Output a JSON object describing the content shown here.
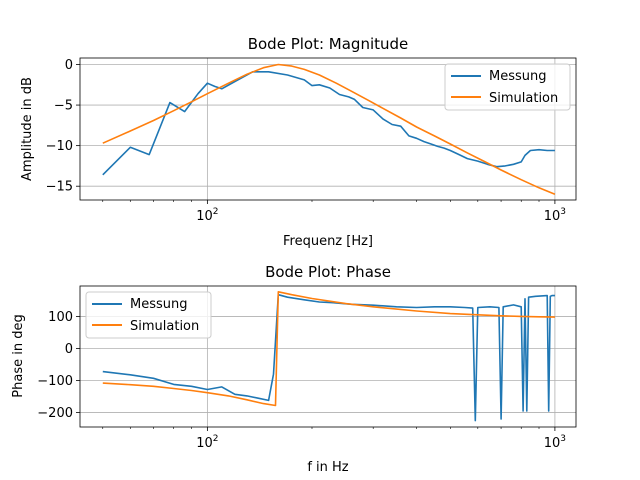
{
  "chart_data": [
    {
      "type": "line",
      "title": "Bode Plot: Magnitude",
      "xlabel": "Frequenz [Hz]",
      "ylabel": "Amplitude in dB",
      "xscale": "log",
      "xlim": [
        43,
        1150
      ],
      "ylim": [
        -16.7,
        0.8
      ],
      "x_ticks": [
        100,
        1000
      ],
      "x_tick_labels": [
        "10^2",
        "10^3"
      ],
      "y_ticks": [
        0,
        -5,
        -10,
        -15
      ],
      "y_tick_labels": [
        "0",
        "−5",
        "−10",
        "−15"
      ],
      "grid": true,
      "legend": "top-right",
      "series": [
        {
          "name": "Messung",
          "color": "#1f77b4",
          "x": [
            50,
            60,
            68,
            78,
            86,
            94,
            100,
            105,
            110,
            120,
            135,
            150,
            170,
            190,
            200,
            210,
            225,
            240,
            255,
            265,
            280,
            300,
            320,
            340,
            360,
            380,
            400,
            420,
            440,
            460,
            480,
            500,
            530,
            560,
            600,
            640,
            680,
            720,
            760,
            800,
            820,
            850,
            900,
            950,
            1000
          ],
          "y": [
            -13.6,
            -10.2,
            -11.1,
            -4.7,
            -5.8,
            -3.6,
            -2.3,
            -2.7,
            -3.0,
            -2.1,
            -0.9,
            -0.9,
            -1.3,
            -1.9,
            -2.6,
            -2.5,
            -2.9,
            -3.7,
            -4.0,
            -4.3,
            -5.3,
            -5.6,
            -6.7,
            -7.4,
            -7.6,
            -8.8,
            -9.1,
            -9.5,
            -9.8,
            -10.1,
            -10.3,
            -10.6,
            -11.1,
            -11.6,
            -11.9,
            -12.3,
            -12.6,
            -12.5,
            -12.3,
            -12.0,
            -11.2,
            -10.6,
            -10.5,
            -10.6,
            -10.6
          ]
        },
        {
          "name": "Simulation",
          "color": "#ff7f0e",
          "x": [
            50,
            60,
            70,
            80,
            90,
            100,
            115,
            130,
            145,
            160,
            175,
            190,
            210,
            235,
            260,
            290,
            320,
            360,
            400,
            450,
            500,
            560,
            630,
            700,
            800,
            900,
            1000
          ],
          "y": [
            -9.7,
            -8.2,
            -6.9,
            -5.7,
            -4.6,
            -3.6,
            -2.3,
            -1.2,
            -0.4,
            0.0,
            -0.2,
            -0.6,
            -1.3,
            -2.3,
            -3.3,
            -4.4,
            -5.4,
            -6.6,
            -7.7,
            -8.8,
            -9.8,
            -10.9,
            -12.0,
            -13.0,
            -14.2,
            -15.2,
            -16.0
          ]
        }
      ]
    },
    {
      "type": "line",
      "title": "Bode Plot: Phase",
      "xlabel": "f in Hz",
      "ylabel": "Phase in deg",
      "xscale": "log",
      "xlim": [
        43,
        1150
      ],
      "ylim": [
        -245,
        195
      ],
      "x_ticks": [
        100,
        1000
      ],
      "x_tick_labels": [
        "10^2",
        "10^3"
      ],
      "y_ticks": [
        100,
        0,
        -100,
        -200
      ],
      "y_tick_labels": [
        "100",
        "0",
        "−100",
        "−200"
      ],
      "grid": true,
      "legend": "top-left",
      "series": [
        {
          "name": "Messung",
          "color": "#1f77b4",
          "x": [
            50,
            60,
            70,
            80,
            90,
            100,
            110,
            120,
            130,
            140,
            150,
            155,
            160,
            170,
            190,
            210,
            230,
            260,
            300,
            350,
            400,
            450,
            500,
            550,
            580,
            590,
            600,
            650,
            690,
            700,
            710,
            760,
            800,
            810,
            820,
            830,
            840,
            880,
            950,
            960,
            970,
            980,
            1000
          ],
          "y": [
            -72,
            -82,
            -93,
            -112,
            -118,
            -128,
            -120,
            -143,
            -148,
            -155,
            -162,
            -80,
            168,
            160,
            152,
            145,
            143,
            138,
            135,
            130,
            128,
            130,
            130,
            128,
            126,
            -225,
            128,
            130,
            128,
            -220,
            130,
            136,
            130,
            -195,
            155,
            -195,
            160,
            163,
            165,
            -195,
            163,
            165,
            165
          ]
        },
        {
          "name": "Simulation",
          "color": "#ff7f0e",
          "x": [
            50,
            60,
            70,
            80,
            90,
            100,
            115,
            130,
            145,
            157,
            160,
            175,
            200,
            250,
            300,
            400,
            500,
            600,
            700,
            800,
            900,
            1000
          ],
          "y": [
            -108,
            -113,
            -118,
            -125,
            -131,
            -138,
            -148,
            -160,
            -172,
            -178,
            177,
            168,
            156,
            140,
            130,
            117,
            109,
            105,
            102,
            100,
            99,
            98
          ]
        }
      ]
    }
  ]
}
